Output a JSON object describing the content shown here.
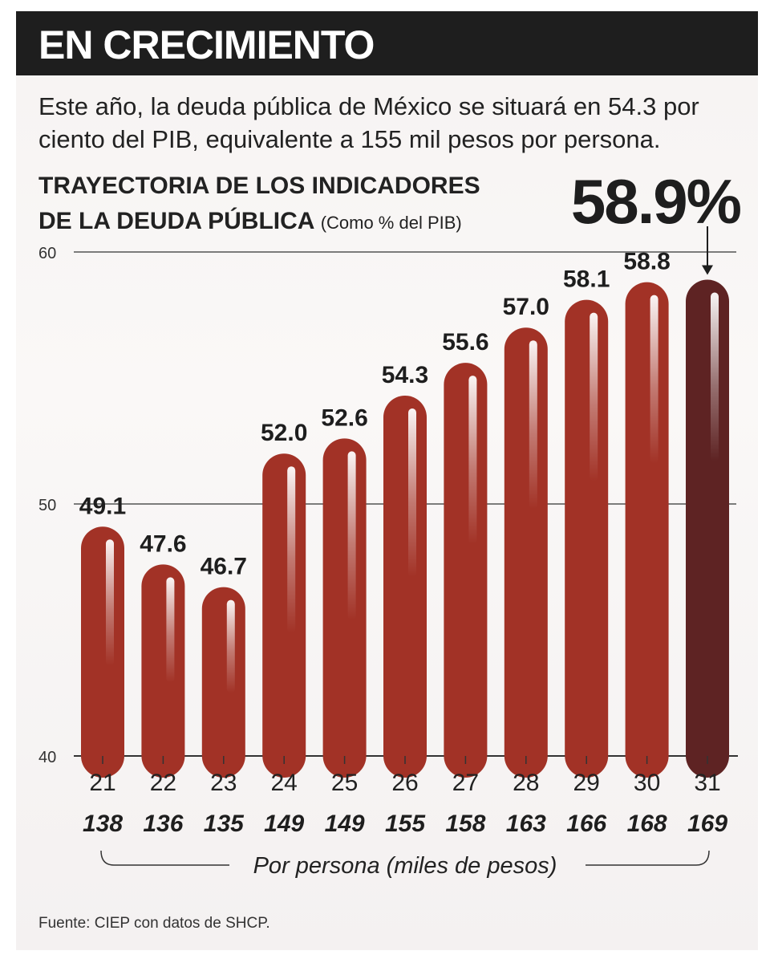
{
  "header": {
    "title": "EN CRECIMIENTO"
  },
  "subtitle": "Este año, la deuda pública de México se situará en 54.3 por ciento del PIB, equivalente a 155 mil pesos por persona.",
  "chart_title": {
    "line1": "TRAYECTORIA DE LOS INDICADORES",
    "line2": "DE LA DEUDA PÚBLICA",
    "unit": "(Como % del PIB)"
  },
  "highlight_value": "58.9%",
  "per_person_label": "Por persona (miles de pesos)",
  "source": {
    "label": "Fuente:",
    "text": "CIEP con datos de SHCP."
  },
  "chart_data": {
    "type": "bar",
    "title": "TRAYECTORIA DE LOS INDICADORES DE LA DEUDA PÚBLICA",
    "ylabel": "Como % del PIB",
    "xlabel": "",
    "categories": [
      "21",
      "22",
      "23",
      "24",
      "25",
      "26",
      "27",
      "28",
      "29",
      "30",
      "31"
    ],
    "series": [
      {
        "name": "Deuda pública (% del PIB)",
        "values": [
          49.1,
          47.6,
          46.7,
          52.0,
          52.6,
          54.3,
          55.6,
          57.0,
          58.1,
          58.8,
          58.9
        ]
      },
      {
        "name": "Por persona (miles de pesos)",
        "values": [
          138,
          136,
          135,
          149,
          149,
          155,
          158,
          163,
          166,
          168,
          169
        ]
      }
    ],
    "value_labels": [
      "49.1",
      "47.6",
      "46.7",
      "52.0",
      "52.6",
      "54.3",
      "55.6",
      "57.0",
      "58.1",
      "58.8",
      ""
    ],
    "ylim": [
      40,
      60
    ],
    "yticks": [
      "40",
      "50",
      "60"
    ],
    "highlighted_category": "31",
    "colors": {
      "bar": "#a23226",
      "highlight_bar": "#5e2323",
      "grid": "#333333"
    }
  }
}
